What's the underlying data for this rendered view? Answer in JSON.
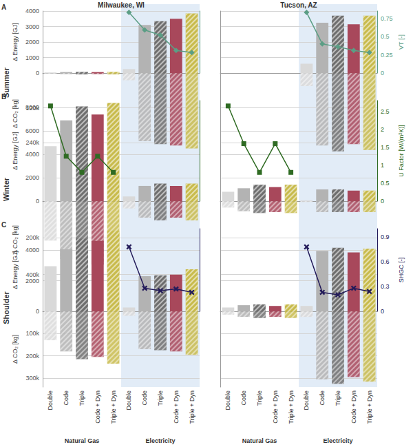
{
  "chart_data": {
    "type": "bar",
    "columns": [
      "Milwaukee, WI",
      "Tucson, AZ"
    ],
    "categories": [
      "Double",
      "Code",
      "Triple",
      "Code + Dyn",
      "Triple + Dyn",
      "Double",
      "Code",
      "Triple",
      "Code + Dyn",
      "Triple + Dyn"
    ],
    "group_labels": [
      "Natural Gas",
      "Electricity"
    ],
    "colors": [
      "#d9d9d9",
      "#b3b3b3",
      "#6e6e6e",
      "#a8485b",
      "#c8bb4c",
      "#d9d9d9",
      "#b3b3b3",
      "#6e6e6e",
      "#a8485b",
      "#c8bb4c"
    ],
    "rows": [
      {
        "label": "A",
        "title": "Summer",
        "ylabel": "Δ Energy [GJ]",
        "ylim": [
          0,
          4000
        ],
        "yticks": [
          0,
          1000,
          2000,
          3000,
          4000
        ],
        "co2_label": "Δ CO₂ [kg]",
        "co2_lim": [
          0,
          280000
        ],
        "co2_ticks": [
          {
            "value": 120000,
            "label": "120k"
          },
          {
            "value": 240000,
            "label": "240k"
          }
        ],
        "y2label": "VT [-]",
        "y2lim": [
          0,
          0.85
        ],
        "y2ticks": [
          0,
          0.25,
          0.5,
          0.75
        ],
        "grid": true,
        "tick_labels": "y",
        "panels": [
          {
            "series": [
              {
                "type": "bar",
                "values": [
                  30,
                  60,
                  70,
                  60,
                  70,
                  250,
                  3100,
                  3350,
                  3500,
                  3850
                ]
              },
              {
                "type": "bar",
                "axis": "co2",
                "values": [
                  2000,
                  4000,
                  5000,
                  4000,
                  5000,
                  25000,
                  235000,
                  245000,
                  250000,
                  260000
                ]
              },
              {
                "type": "line",
                "axis": "y2",
                "color": "#5b9e85",
                "marker": "diamond",
                "values": [
                  null,
                  null,
                  null,
                  null,
                  null,
                  0.83,
                  0.59,
                  0.52,
                  0.31,
                  0.28
                ]
              }
            ]
          },
          {
            "series": [
              {
                "type": "bar",
                "values": [
                  0,
                  0,
                  0,
                  0,
                  0,
                  600,
                  3250,
                  3700,
                  3150,
                  3700
                ]
              },
              {
                "type": "bar",
                "axis": "co2",
                "values": [
                  0,
                  0,
                  0,
                  0,
                  0,
                  45000,
                  250000,
                  270000,
                  245000,
                  265000
                ]
              },
              {
                "type": "line",
                "axis": "y2",
                "color": "#5b9e85",
                "marker": "diamond",
                "values": [
                  null,
                  null,
                  null,
                  null,
                  null,
                  0.83,
                  0.4,
                  0.36,
                  0.31,
                  0.28
                ]
              }
            ]
          }
        ]
      },
      {
        "label": "B",
        "title": "Winter",
        "ylabel": "Δ Energy [GJ]",
        "ylim": [
          0,
          8600
        ],
        "yticks": [
          0,
          2000,
          4000,
          6000,
          8000
        ],
        "co2_label": "Δ CO₂ [kg]",
        "co2_lim": [
          0,
          420000
        ],
        "co2_ticks": [
          {
            "value": 200000,
            "label": "200k"
          },
          {
            "value": 400000,
            "label": "400k"
          }
        ],
        "y2label": "U Factor [W/(m²K)]",
        "y2lim": [
          0,
          2.8
        ],
        "y2ticks": [
          0,
          0.5,
          1,
          1.5,
          2,
          2.5
        ],
        "grid": true,
        "tick_labels": "y",
        "panels": [
          {
            "series": [
              {
                "type": "bar",
                "values": [
                  4700,
                  6900,
                  8100,
                  7400,
                  8400,
                  400,
                  1300,
                  1500,
                  1300,
                  1500
                ]
              },
              {
                "type": "bar",
                "axis": "co2",
                "values": [
                  215000,
                  315000,
                  370000,
                  345000,
                  395000,
                  40000,
                  90000,
                  105000,
                  90000,
                  105000
                ]
              },
              {
                "type": "line",
                "axis": "y2",
                "color": "#2f6b23",
                "marker": "square",
                "values": [
                  2.65,
                  1.25,
                  0.8,
                  1.25,
                  0.8,
                  null,
                  null,
                  null,
                  null,
                  null
                ]
              }
            ]
          },
          {
            "series": [
              {
                "type": "bar",
                "values": [
                  800,
                  1100,
                  1400,
                  1200,
                  1400,
                  50,
                  1000,
                  1000,
                  900,
                  900
                ]
              },
              {
                "type": "bar",
                "axis": "co2",
                "values": [
                  35000,
                  55000,
                  65000,
                  60000,
                  65000,
                  5000,
                  60000,
                  60000,
                  60000,
                  60000
                ]
              },
              {
                "type": "line",
                "axis": "y2",
                "color": "#2f6b23",
                "marker": "square",
                "values": [
                  2.65,
                  1.6,
                  0.8,
                  1.6,
                  0.8,
                  null,
                  null,
                  null,
                  null,
                  null
                ]
              }
            ]
          }
        ]
      },
      {
        "label": "C",
        "title": "Shoulder",
        "ylabel": "Δ Energy [GJ]",
        "ylim": [
          0,
          5400
        ],
        "yticks": [
          0,
          2000,
          4000
        ],
        "co2_label": "Δ CO₂ [kg]",
        "co2_lim": [
          0,
          340000
        ],
        "co2_ticks": [
          {
            "value": 100000,
            "label": "100k"
          },
          {
            "value": 200000,
            "label": "200k"
          },
          {
            "value": 300000,
            "label": "300k"
          }
        ],
        "y2label": "SHGC [-]",
        "y2lim": [
          0,
          1.0
        ],
        "y2ticks": [
          0,
          0.3,
          0.6,
          0.9
        ],
        "grid": true,
        "panels": [
          {
            "series": [
              {
                "type": "bar",
                "values": [
                  2950,
                  4050,
                  4750,
                  4600,
                  5250,
                  250,
                  2300,
                  2350,
                  2400,
                  2750
                ]
              },
              {
                "type": "bar",
                "axis": "co2",
                "values": [
                  130000,
                  180000,
                  215000,
                  205000,
                  235000,
                  20000,
                  170000,
                  175000,
                  180000,
                  195000
                ]
              },
              {
                "type": "line",
                "axis": "y2",
                "color": "#231b5a",
                "marker": "x",
                "values": [
                  null,
                  null,
                  null,
                  null,
                  null,
                  0.78,
                  0.28,
                  0.25,
                  0.27,
                  0.23
                ]
              }
            ]
          },
          {
            "series": [
              {
                "type": "bar",
                "values": [
                  250,
                  400,
                  450,
                  350,
                  450,
                  350,
                  3950,
                  4150,
                  3850,
                  4100
                ]
              },
              {
                "type": "bar",
                "axis": "co2",
                "values": [
                  15000,
                  25000,
                  30000,
                  25000,
                  30000,
                  25000,
                  305000,
                  325000,
                  295000,
                  315000
                ]
              },
              {
                "type": "line",
                "axis": "y2",
                "color": "#231b5a",
                "marker": "x",
                "values": [
                  null,
                  null,
                  null,
                  null,
                  null,
                  0.78,
                  0.23,
                  0.2,
                  0.28,
                  0.24
                ]
              }
            ]
          }
        ]
      }
    ]
  }
}
